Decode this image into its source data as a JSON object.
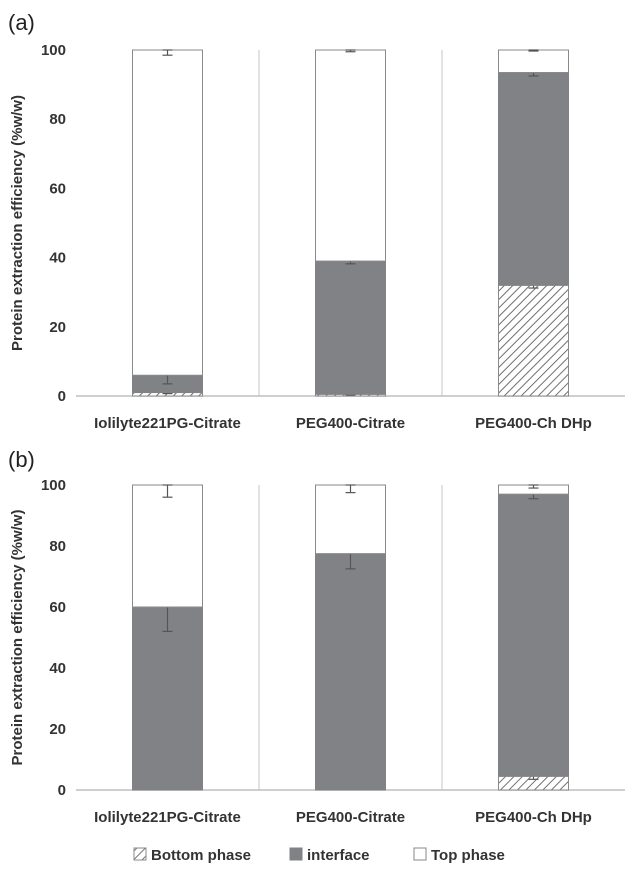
{
  "colors": {
    "interface": "#808285",
    "top": "#ffffff",
    "bottom_hatch": "#707070",
    "outline": "#8a8a8a",
    "errorbar": "#555555",
    "divider": "#d9d9d9",
    "axis": "#bfbfbf"
  },
  "legend": {
    "items": [
      {
        "key": "bottom",
        "label": "Bottom phase"
      },
      {
        "key": "interface",
        "label": "interface"
      },
      {
        "key": "top",
        "label": "Top phase"
      }
    ],
    "placement": "bottom"
  },
  "chart_data": [
    {
      "panel_label": "(a)",
      "type": "bar",
      "stacked": true,
      "ylabel": "Protein extraction efficiency (%w/w)",
      "ylim": [
        0,
        100
      ],
      "yticks": [
        "0",
        "20",
        "40",
        "60",
        "80",
        "100"
      ],
      "categories": [
        "Iolilyte221PG-Citrate",
        "PEG400-Citrate",
        "PEG400-Ch DHp"
      ],
      "series": [
        {
          "name": "Bottom phase",
          "key": "bottom",
          "values": [
            1,
            0.5,
            32
          ],
          "error": [
            0.3,
            0.2,
            0.8
          ]
        },
        {
          "name": "interface",
          "key": "interface",
          "values": [
            5,
            38.5,
            61.5
          ],
          "error": [
            2.5,
            0.8,
            1.0
          ]
        },
        {
          "name": "Top phase",
          "key": "top",
          "values": [
            94,
            61,
            6.5
          ],
          "error": [
            1.5,
            0.5,
            0.3
          ]
        }
      ]
    },
    {
      "panel_label": "(b)",
      "type": "bar",
      "stacked": true,
      "ylabel": "Protein extraction efficiency (%w/w)",
      "ylim": [
        0,
        100
      ],
      "yticks": [
        "0",
        "20",
        "40",
        "60",
        "80",
        "100"
      ],
      "categories": [
        "Iolilyte221PG-Citrate",
        "PEG400-Citrate",
        "PEG400-Ch DHp"
      ],
      "series": [
        {
          "name": "Bottom phase",
          "key": "bottom",
          "values": [
            0,
            0,
            4.5
          ],
          "error": [
            0,
            0,
            1.0
          ]
        },
        {
          "name": "interface",
          "key": "interface",
          "values": [
            60,
            77.5,
            92.5
          ],
          "error": [
            8,
            5,
            1.5
          ]
        },
        {
          "name": "Top phase",
          "key": "top",
          "values": [
            40,
            22.5,
            3
          ],
          "error": [
            4,
            2.5,
            1.0
          ]
        }
      ]
    }
  ]
}
